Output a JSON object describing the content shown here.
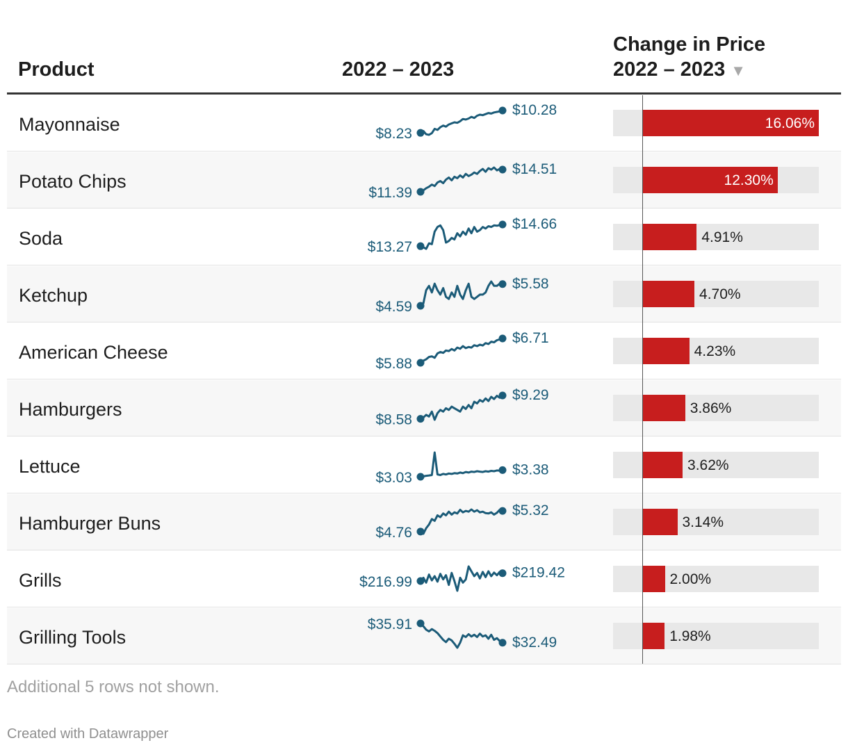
{
  "header": {
    "product": "Product",
    "trend": "2022 – 2023",
    "change_line1": "Change in Price",
    "change_line2": "2022 – 2023",
    "sort_icon": "sort-descending-icon"
  },
  "rows": [
    {
      "product": "Mayonnaise",
      "start_label": "$8.23",
      "end_label": "$10.28",
      "change_label": "16.06%",
      "start": 8.23,
      "end": 10.28,
      "change": 16.06,
      "trend": [
        8.23,
        8.4,
        8.1,
        8.05,
        8.2,
        8.6,
        8.5,
        8.75,
        8.9,
        8.8,
        9.0,
        9.1,
        9.2,
        9.15,
        9.3,
        9.5,
        9.45,
        9.55,
        9.7,
        9.6,
        9.8,
        9.9,
        9.85,
        9.95,
        10.05,
        10.0,
        10.1,
        10.15,
        10.2,
        10.28
      ]
    },
    {
      "product": "Potato Chips",
      "start_label": "$11.39",
      "end_label": "$14.51",
      "change_label": "12.30%",
      "start": 11.39,
      "end": 14.51,
      "change": 12.3,
      "trend": [
        11.39,
        11.6,
        11.9,
        12.1,
        12.4,
        12.2,
        12.7,
        12.9,
        12.6,
        13.1,
        13.4,
        13.0,
        13.5,
        13.3,
        13.7,
        13.4,
        13.9,
        13.6,
        13.8,
        14.1,
        13.9,
        14.3,
        14.6,
        14.2,
        14.7,
        14.5,
        14.8,
        14.4,
        14.6,
        14.51
      ]
    },
    {
      "product": "Soda",
      "start_label": "$13.27",
      "end_label": "$14.66",
      "change_label": "4.91%",
      "start": 13.27,
      "end": 14.66,
      "change": 4.91,
      "trend": [
        13.27,
        13.2,
        13.1,
        13.45,
        13.4,
        14.2,
        14.5,
        14.6,
        14.3,
        13.5,
        13.6,
        13.8,
        13.7,
        14.1,
        13.9,
        14.2,
        14.0,
        14.4,
        14.1,
        14.5,
        14.2,
        14.3,
        14.5,
        14.4,
        14.55,
        14.5,
        14.6,
        14.58,
        14.62,
        14.66
      ]
    },
    {
      "product": "Ketchup",
      "start_label": "$4.59",
      "end_label": "$5.58",
      "change_label": "4.70%",
      "start": 4.59,
      "end": 5.58,
      "change": 4.7,
      "trend": [
        4.59,
        4.7,
        5.3,
        5.5,
        5.2,
        5.6,
        5.3,
        5.1,
        5.4,
        5.0,
        4.9,
        5.2,
        5.0,
        5.5,
        5.1,
        4.9,
        5.3,
        5.6,
        5.0,
        4.9,
        5.0,
        5.1,
        5.1,
        5.2,
        5.5,
        5.7,
        5.5,
        5.5,
        5.6,
        5.58
      ]
    },
    {
      "product": "American Cheese",
      "start_label": "$5.88",
      "end_label": "$6.71",
      "change_label": "4.23%",
      "start": 5.88,
      "end": 6.71,
      "change": 4.23,
      "trend": [
        5.88,
        5.95,
        6.0,
        6.08,
        6.1,
        6.05,
        6.2,
        6.25,
        6.22,
        6.3,
        6.28,
        6.35,
        6.3,
        6.4,
        6.36,
        6.45,
        6.38,
        6.42,
        6.4,
        6.48,
        6.45,
        6.5,
        6.47,
        6.55,
        6.52,
        6.6,
        6.58,
        6.65,
        6.68,
        6.71
      ]
    },
    {
      "product": "Hamburgers",
      "start_label": "$8.58",
      "end_label": "$9.29",
      "change_label": "3.86%",
      "start": 8.58,
      "end": 9.29,
      "change": 3.86,
      "trend": [
        8.58,
        8.62,
        8.7,
        8.65,
        8.8,
        8.55,
        8.75,
        8.85,
        8.8,
        8.9,
        8.85,
        8.95,
        8.9,
        8.85,
        8.8,
        8.95,
        8.88,
        9.0,
        8.9,
        9.1,
        9.05,
        9.15,
        9.1,
        9.2,
        9.12,
        9.25,
        9.18,
        9.28,
        9.22,
        9.29
      ]
    },
    {
      "product": "Lettuce",
      "start_label": "$3.03",
      "end_label": "$3.38",
      "change_label": "3.62%",
      "start": 3.03,
      "end": 3.38,
      "change": 3.62,
      "trend": [
        3.03,
        3.05,
        3.08,
        3.1,
        3.12,
        4.3,
        3.15,
        3.12,
        3.18,
        3.15,
        3.2,
        3.18,
        3.22,
        3.2,
        3.25,
        3.22,
        3.28,
        3.25,
        3.3,
        3.28,
        3.32,
        3.3,
        3.28,
        3.32,
        3.3,
        3.34,
        3.32,
        3.36,
        3.35,
        3.38
      ]
    },
    {
      "product": "Hamburger Buns",
      "start_label": "$4.76",
      "end_label": "$5.32",
      "change_label": "3.14%",
      "start": 4.76,
      "end": 5.32,
      "change": 3.14,
      "trend": [
        4.76,
        4.7,
        4.85,
        4.95,
        5.1,
        5.05,
        5.2,
        5.15,
        5.25,
        5.2,
        5.3,
        5.22,
        5.28,
        5.25,
        5.35,
        5.28,
        5.32,
        5.3,
        5.36,
        5.3,
        5.34,
        5.28,
        5.3,
        5.26,
        5.25,
        5.28,
        5.22,
        5.27,
        5.35,
        5.32
      ]
    },
    {
      "product": "Grills",
      "start_label": "$216.99",
      "end_label": "$219.42",
      "change_label": "2.00%",
      "start": 216.99,
      "end": 219.42,
      "change": 2.0,
      "trend": [
        216.99,
        218.0,
        216.5,
        219.0,
        217.2,
        218.5,
        216.8,
        219.2,
        217.5,
        218.8,
        215.8,
        219.5,
        217.0,
        214.0,
        218.0,
        216.5,
        217.5,
        221.5,
        220.0,
        218.5,
        219.5,
        217.8,
        219.8,
        218.2,
        220.0,
        218.5,
        219.6,
        218.8,
        219.8,
        219.42
      ]
    },
    {
      "product": "Grilling Tools",
      "start_label": "$35.91",
      "end_label": "$32.49",
      "change_label": "1.98%",
      "start": 35.91,
      "end": 32.49,
      "change": 1.98,
      "trend": [
        35.91,
        35.4,
        34.8,
        34.5,
        34.9,
        34.6,
        34.2,
        33.6,
        33.0,
        32.6,
        33.2,
        32.9,
        32.3,
        31.6,
        32.5,
        33.8,
        33.5,
        34.0,
        33.6,
        33.9,
        33.5,
        34.1,
        33.6,
        33.8,
        33.2,
        33.9,
        33.0,
        33.3,
        32.8,
        32.49
      ]
    }
  ],
  "footnote": "Additional 5 rows not shown.",
  "credit": "Created with Datawrapper",
  "colors": {
    "bar": "#c71e1e",
    "bar_bg": "#e8e8e8",
    "spark": "#1b5b78",
    "text": "#1d1d1d"
  },
  "chart_data": {
    "type": "bar",
    "categories": [
      "Mayonnaise",
      "Potato Chips",
      "Soda",
      "Ketchup",
      "American Cheese",
      "Hamburgers",
      "Lettuce",
      "Hamburger Buns",
      "Grills",
      "Grilling Tools"
    ],
    "values": [
      16.06,
      12.3,
      4.91,
      4.7,
      4.23,
      3.86,
      3.62,
      3.14,
      2.0,
      1.98
    ],
    "title": "",
    "xlabel": "Change in Price 2022 – 2023",
    "ylabel": "Product",
    "xlim": [
      0,
      16.06
    ]
  }
}
